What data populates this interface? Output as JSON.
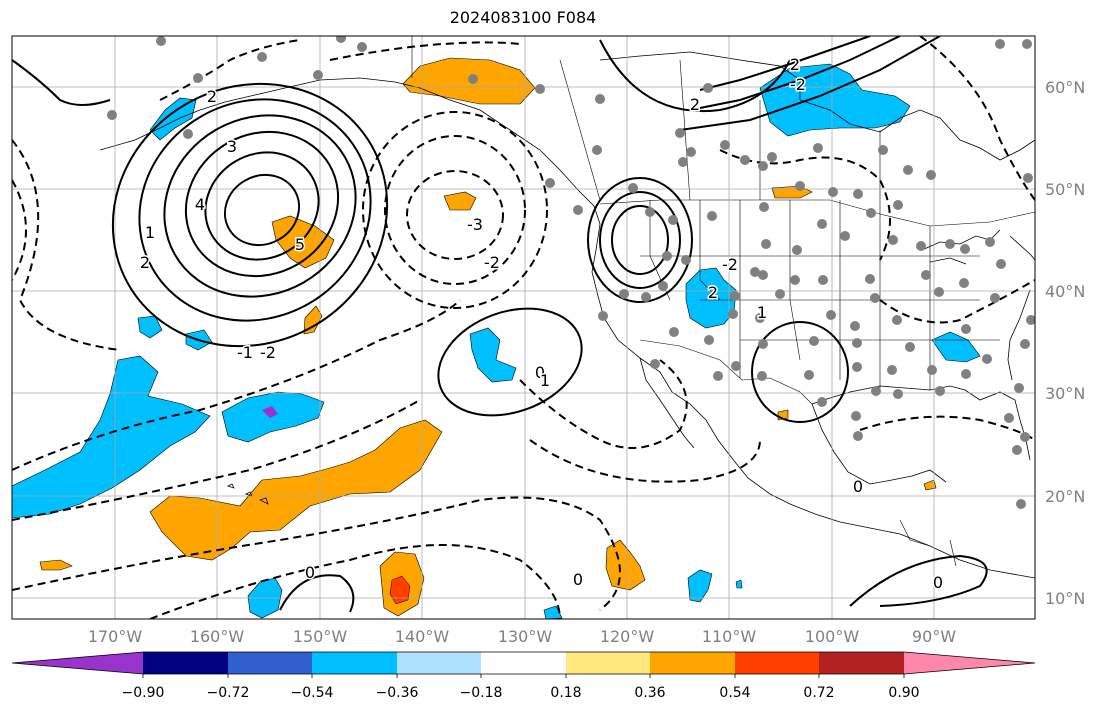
{
  "title": "2024083100 F084",
  "lon_labels": [
    "170°W",
    "160°W",
    "150°W",
    "140°W",
    "130°W",
    "120°W",
    "110°W",
    "100°W",
    "90°W"
  ],
  "lat_labels": [
    "60°N",
    "50°N",
    "40°N",
    "30°N",
    "20°N",
    "10°N"
  ],
  "colorbar": {
    "colors": [
      "#9933cc",
      "#000080",
      "#3060cf",
      "#00bfff",
      "#b0e0ff",
      "#ffffff",
      "#ffe97f",
      "#ffa500",
      "#ff3f00",
      "#b22222",
      "#ff88aa"
    ],
    "tick_labels": [
      "−0.90",
      "−0.72",
      "−0.54",
      "−0.36",
      "−0.18",
      "0.18",
      "0.36",
      "0.54",
      "0.72",
      "0.90"
    ]
  },
  "contour_labels": [
    {
      "text": "3",
      "cls": "pos"
    },
    {
      "text": "2",
      "cls": "pos"
    },
    {
      "text": "4",
      "cls": "pos"
    },
    {
      "text": "1",
      "cls": "pos"
    },
    {
      "text": "2",
      "cls": "pos"
    },
    {
      "text": "5",
      "cls": "pos"
    },
    {
      "text": "-3",
      "cls": "neg"
    },
    {
      "text": "-2",
      "cls": "neg"
    },
    {
      "text": "-1",
      "cls": "neg"
    },
    {
      "text": "-2",
      "cls": "neg"
    },
    {
      "text": "0",
      "cls": "zero"
    },
    {
      "text": "1",
      "cls": "pos"
    },
    {
      "text": "0",
      "cls": "zero"
    },
    {
      "text": "0",
      "cls": "zero"
    },
    {
      "text": "0",
      "cls": "zero"
    },
    {
      "text": "2",
      "cls": "pos"
    },
    {
      "text": "-2",
      "cls": "neg"
    },
    {
      "text": "2",
      "cls": "pos"
    },
    {
      "text": "-2",
      "cls": "neg"
    },
    {
      "text": "0",
      "cls": "zero"
    },
    {
      "text": "1",
      "cls": "pos"
    },
    {
      "text": "2",
      "cls": "pos"
    }
  ]
}
